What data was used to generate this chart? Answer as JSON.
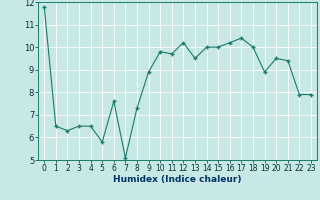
{
  "x": [
    0,
    1,
    2,
    3,
    4,
    5,
    6,
    7,
    8,
    9,
    10,
    11,
    12,
    13,
    14,
    15,
    16,
    17,
    18,
    19,
    20,
    21,
    22,
    23
  ],
  "y": [
    11.8,
    6.5,
    6.3,
    6.5,
    6.5,
    5.8,
    7.6,
    5.1,
    7.3,
    8.9,
    9.8,
    9.7,
    10.2,
    9.5,
    10.0,
    10.0,
    10.2,
    10.4,
    10.0,
    8.9,
    9.5,
    9.4,
    7.9,
    7.9
  ],
  "xlabel": "Humidex (Indice chaleur)",
  "ylim": [
    5,
    12
  ],
  "xlim": [
    -0.5,
    23.5
  ],
  "yticks": [
    5,
    6,
    7,
    8,
    9,
    10,
    11,
    12
  ],
  "xticks": [
    0,
    1,
    2,
    3,
    4,
    5,
    6,
    7,
    8,
    9,
    10,
    11,
    12,
    13,
    14,
    15,
    16,
    17,
    18,
    19,
    20,
    21,
    22,
    23
  ],
  "line_color": "#1a7a6e",
  "marker": "+",
  "bg_color": "#c8e8e5",
  "grid_color": "#ffffff",
  "axis_bg": "#c8e8e5",
  "label_color": "#003366",
  "tick_color": "#003333",
  "xlabel_fontsize": 6.5,
  "tick_fontsize": 5.5
}
